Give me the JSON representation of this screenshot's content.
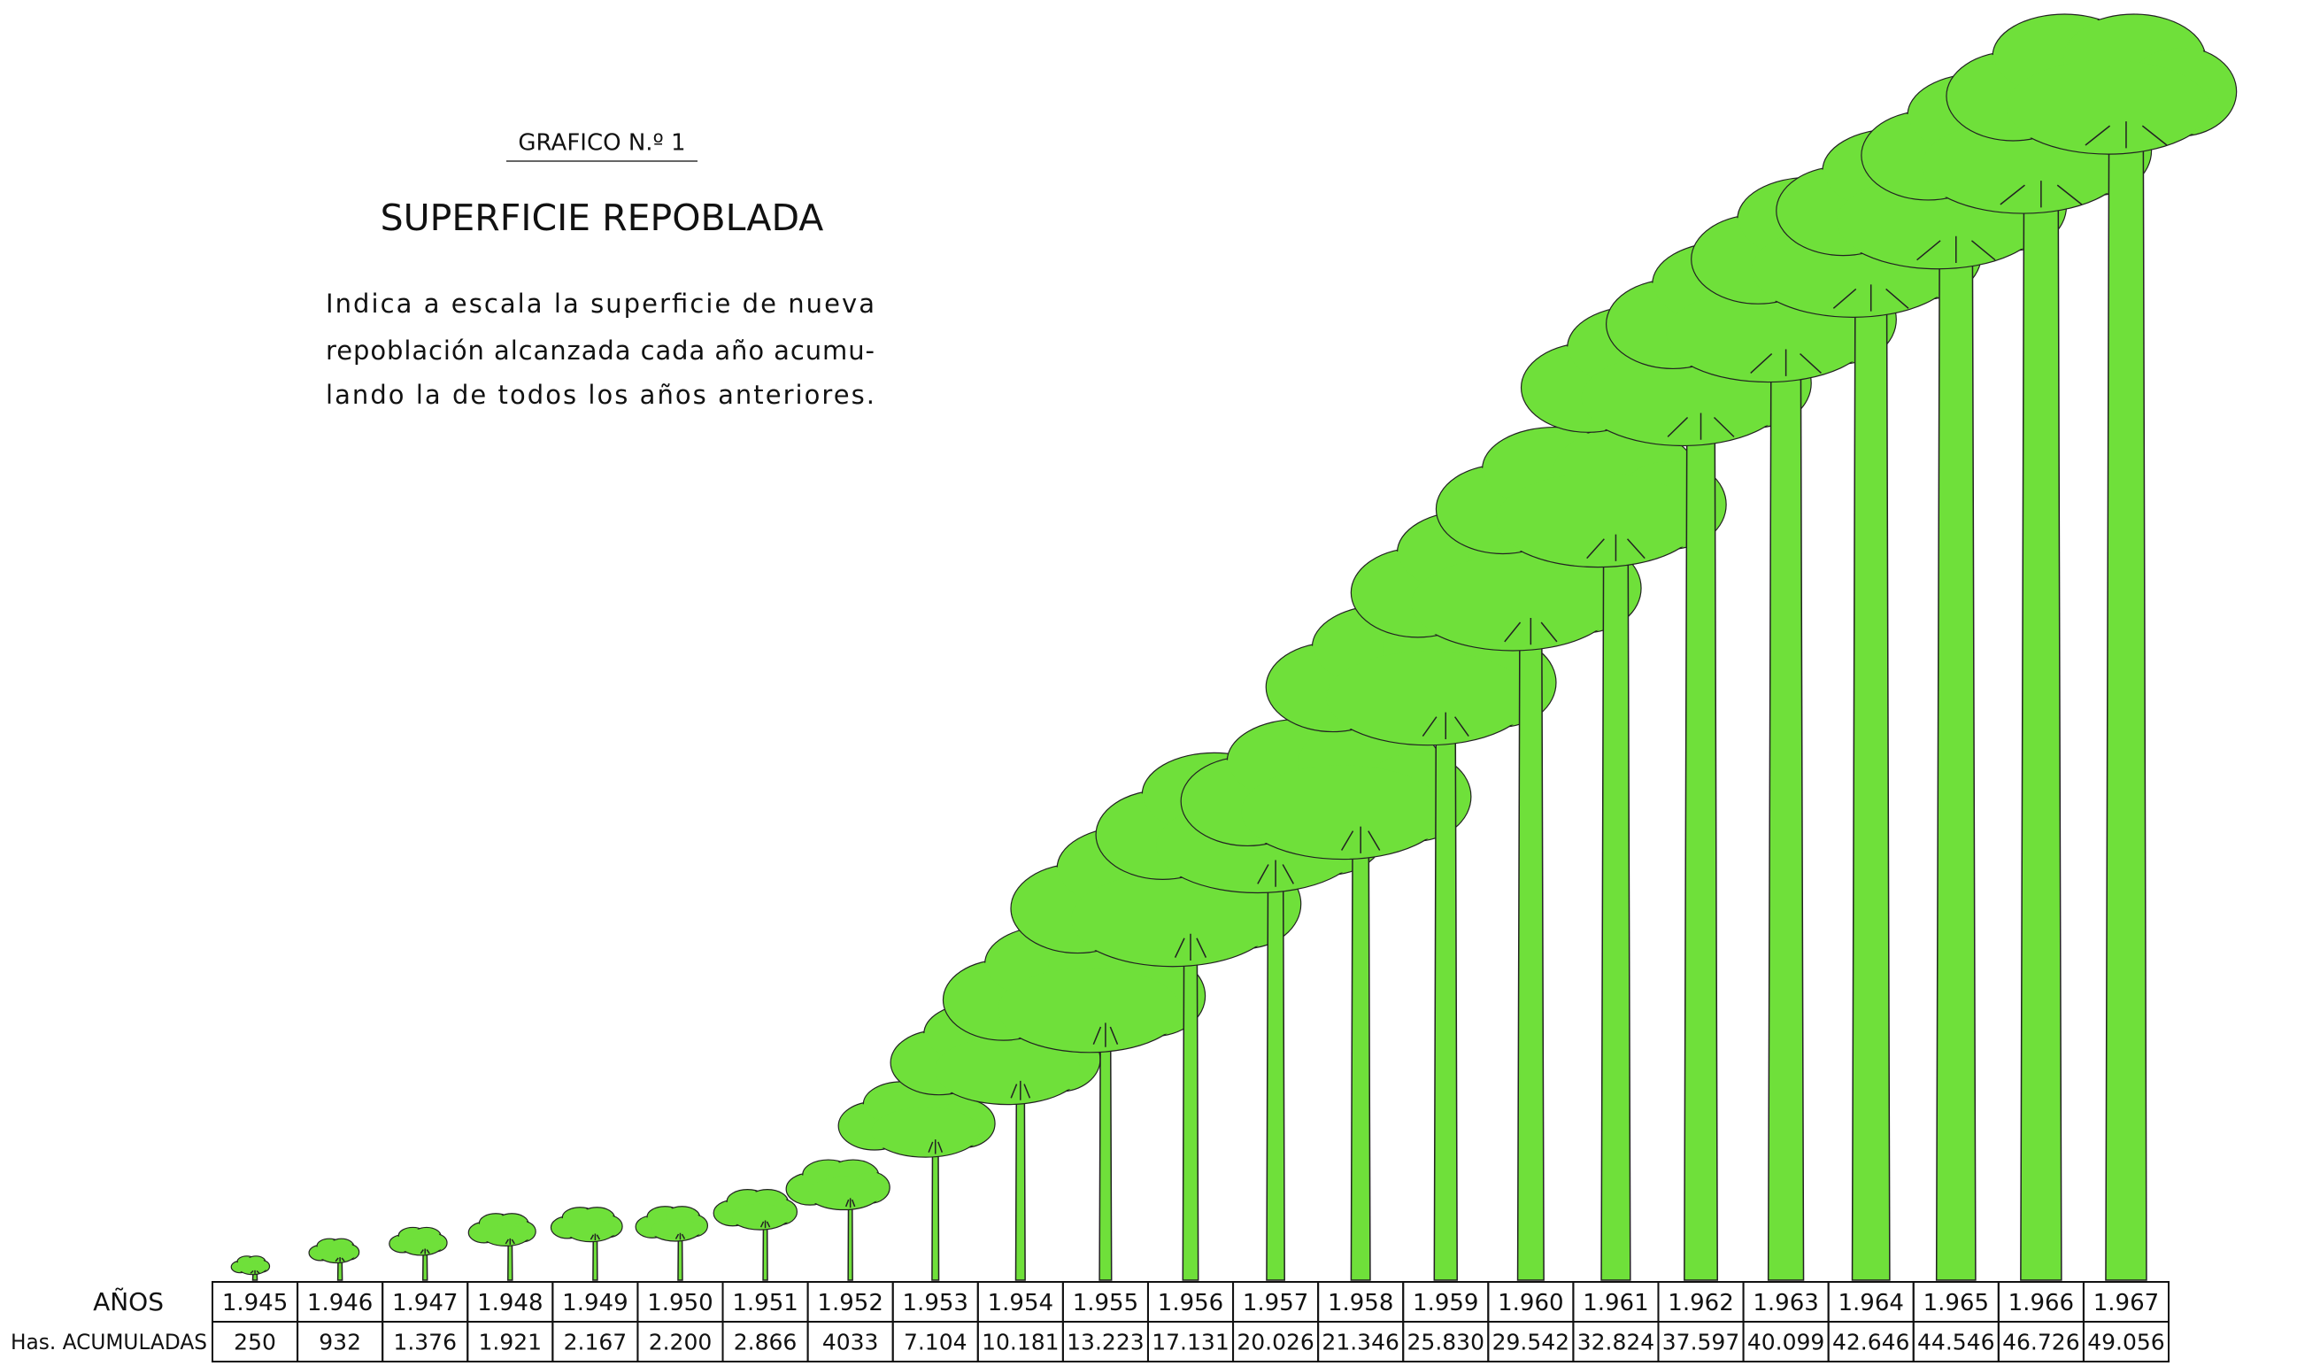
{
  "chart_data": {
    "type": "pictogram",
    "subtitle": "GRAFICO N.º 1",
    "title": "SUPERFICIE REPOBLADA",
    "description": [
      "Indica a escala la superficie de nueva",
      "repoblación alcanzada cada año acumu-",
      "lando la de todos los años anteriores."
    ],
    "category_header": "AÑOS",
    "value_header": "Has. ACUMULADAS",
    "categories": [
      "1.945",
      "1.946",
      "1.947",
      "1.948",
      "1.949",
      "1.950",
      "1.951",
      "1.952",
      "1.953",
      "1.954",
      "1.955",
      "1.956",
      "1.957",
      "1.958",
      "1.959",
      "1.960",
      "1.961",
      "1.962",
      "1.963",
      "1.964",
      "1.965",
      "1.966",
      "1.967"
    ],
    "values": [
      250,
      932,
      1376,
      1921,
      2167,
      2200,
      2866,
      4033,
      7104,
      10181,
      13223,
      17131,
      20026,
      21346,
      25830,
      29542,
      32824,
      37597,
      40099,
      42646,
      44546,
      46726,
      49056
    ],
    "value_labels": [
      "250",
      "932",
      "1.376",
      "1.921",
      "2.167",
      "2.200",
      "2.866",
      "4033",
      "7.104",
      "10.181",
      "13.223",
      "17.131",
      "20.026",
      "21.346",
      "25.830",
      "29.542",
      "32.824",
      "37.597",
      "40.099",
      "42.646",
      "44.546",
      "46.726",
      "49.056"
    ],
    "color": "#6fe03a"
  }
}
